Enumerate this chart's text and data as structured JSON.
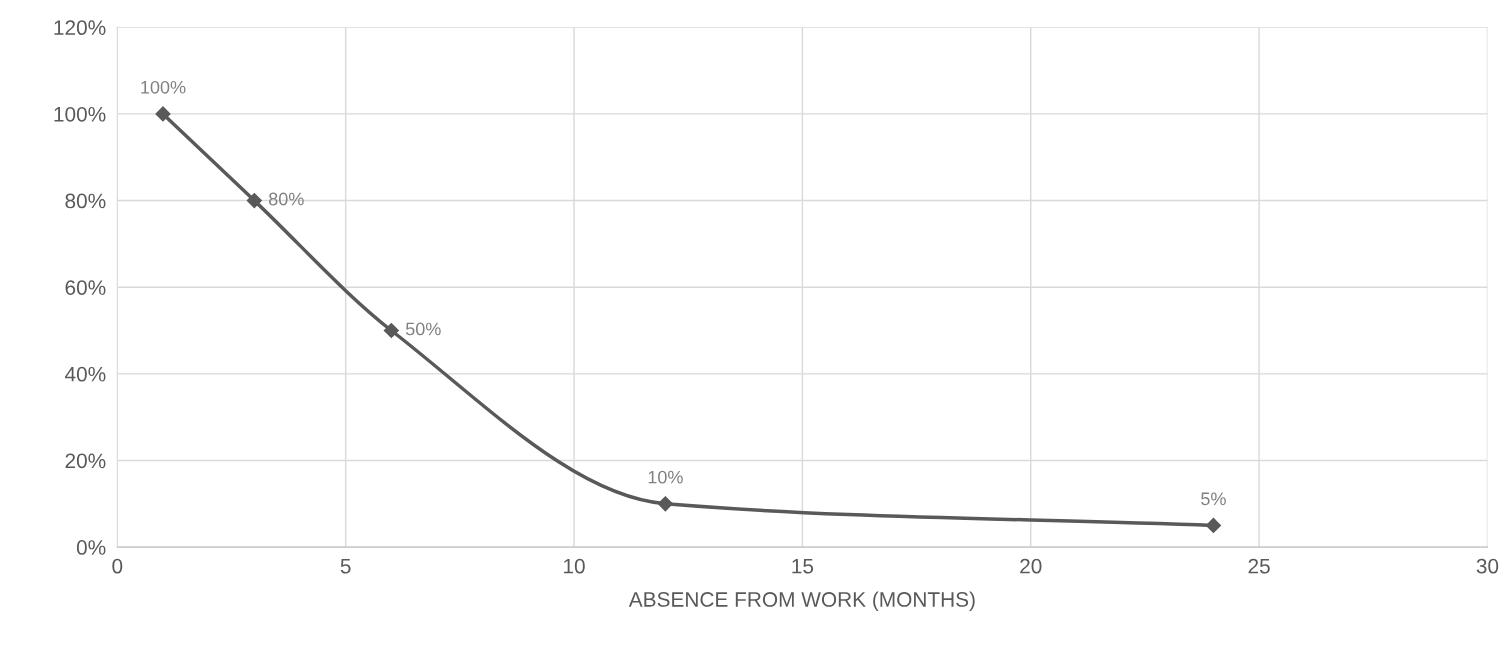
{
  "chart_data": {
    "type": "line",
    "xlabel": "ABSENCE FROM WORK (MONTHS)",
    "x": [
      1,
      3,
      6,
      12,
      24
    ],
    "series": [
      {
        "color": "#595959",
        "values": [
          100,
          80,
          50,
          10,
          5
        ],
        "value_labels": [
          "100%",
          "80%",
          "50%",
          "10%",
          "5%"
        ]
      }
    ],
    "xlim": [
      0,
      30
    ],
    "xticks": [
      0,
      5,
      10,
      15,
      20,
      25,
      30
    ],
    "ylim": [
      0,
      120
    ],
    "yticks": [
      {
        "value": 0,
        "label": "0%"
      },
      {
        "value": 20,
        "label": "20%"
      },
      {
        "value": 40,
        "label": "40%"
      },
      {
        "value": 60,
        "label": "60%"
      },
      {
        "value": 80,
        "label": "80%"
      },
      {
        "value": 100,
        "label": "100%"
      },
      {
        "value": 120,
        "label": "120%"
      }
    ],
    "grid": true,
    "marker": "diamond",
    "line_style": "solid"
  }
}
